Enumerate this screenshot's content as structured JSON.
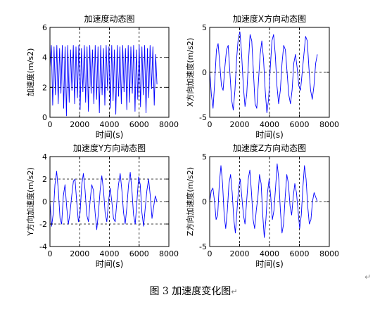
{
  "caption": {
    "text": "图 3  加速度变化图",
    "mark": "↵"
  },
  "return_mark": "↵",
  "colors": {
    "line": "#0000ff",
    "axis": "#000000",
    "grid": "#000000",
    "background": "#ffffff"
  },
  "chart_data": [
    {
      "type": "line",
      "title": "加速度动态图",
      "xlabel": "时间(s)",
      "ylabel": "加速度(m/s2)",
      "xlim": [
        0,
        8000
      ],
      "ylim": [
        0,
        6
      ],
      "xticks": [
        0,
        2000,
        4000,
        6000,
        8000
      ],
      "yticks": [
        0,
        2,
        4,
        6
      ],
      "xtick_labels": [
        "0",
        "2000",
        "4000",
        "6000",
        "8000"
      ],
      "ytick_labels": [
        "0",
        "2",
        "4",
        "6"
      ],
      "grid": true,
      "grid_style": "dashed",
      "x_end": 7200,
      "series": [
        {
          "values": [
            3.3,
            4.8,
            0.8,
            4.7,
            1.5,
            4.8,
            0.9,
            4.6,
            1.6,
            4.8,
            0.6,
            4.7,
            0.1,
            4.8,
            1.0,
            4.5,
            1.8,
            4.8,
            0.9,
            4.7,
            1.3,
            4.8,
            0.5,
            4.6,
            1.7,
            4.8,
            1.0,
            4.7,
            0.4,
            4.8,
            1.6,
            4.5,
            0.9,
            4.8,
            1.2,
            4.7,
            0.3,
            4.8,
            1.5,
            4.6,
            0.8,
            4.8,
            1.8,
            4.7,
            0.6,
            4.8,
            1.1,
            4.5,
            0.2,
            4.8,
            1.4,
            4.7,
            0.9,
            4.8,
            1.7,
            4.6,
            0.5,
            4.8,
            1.0,
            4.7,
            1.6,
            4.8,
            0.4,
            4.5,
            1.2,
            4.8,
            0.7,
            4.7,
            1.5,
            4.8,
            0.3,
            4.6,
            1.3,
            4.8,
            1.9,
            4.7,
            0.8,
            4.2,
            2.2
          ]
        }
      ]
    },
    {
      "type": "line",
      "title": "加速度X方向动态图",
      "xlabel": "时间(s)",
      "ylabel": "X方向加速度(m/s2)",
      "xlim": [
        0,
        8000
      ],
      "ylim": [
        -5,
        5
      ],
      "xticks": [
        0,
        2000,
        4000,
        6000,
        8000
      ],
      "yticks": [
        -5,
        0,
        5
      ],
      "xtick_labels": [
        "0",
        "2000",
        "4000",
        "6000",
        "8000"
      ],
      "ytick_labels": [
        "-5",
        "0",
        "5"
      ],
      "grid": true,
      "grid_style": "dashed",
      "x_end": 7200,
      "series": [
        {
          "values": [
            0.3,
            -2.5,
            -4.0,
            -1.0,
            2.5,
            3.2,
            1.0,
            -1.5,
            -2.0,
            0.5,
            2.5,
            3.0,
            0.0,
            -3.0,
            -4.2,
            -2.0,
            1.5,
            3.8,
            4.5,
            2.0,
            -1.5,
            -3.8,
            -2.5,
            1.0,
            4.2,
            3.5,
            0.0,
            -3.5,
            -4.0,
            -1.0,
            2.0,
            3.5,
            1.5,
            -2.0,
            -4.5,
            -3.0,
            0.5,
            3.5,
            4.2,
            2.0,
            -1.5,
            -3.5,
            -2.0,
            1.0,
            3.0,
            2.5,
            0.0,
            -2.5,
            -3.5,
            -2.0,
            1.0,
            2.0,
            0.5,
            -1.5,
            -2.0,
            0.0,
            2.0,
            4.0,
            3.5,
            0.5,
            -2.0,
            -3.0,
            -1.5,
            1.0,
            2.0
          ]
        }
      ]
    },
    {
      "type": "line",
      "title": "加速度Y方向动态图",
      "xlabel": "时间(s)",
      "ylabel": "Y方向加速度(m/s2)",
      "xlim": [
        0,
        8000
      ],
      "ylim": [
        -4,
        4
      ],
      "xticks": [
        0,
        2000,
        4000,
        6000,
        8000
      ],
      "yticks": [
        -4,
        -2,
        0,
        2,
        4
      ],
      "xtick_labels": [
        "0",
        "2000",
        "4000",
        "6000",
        "8000"
      ],
      "ytick_labels": [
        "-4",
        "-2",
        "0",
        "2",
        "4"
      ],
      "grid": true,
      "grid_style": "dashed",
      "x_end": 7200,
      "series": [
        {
          "values": [
            0.0,
            -2.2,
            -1.0,
            1.5,
            2.7,
            1.0,
            -1.5,
            -2.0,
            0.5,
            1.5,
            -0.5,
            -2.0,
            -1.0,
            0.5,
            1.8,
            2.0,
            0.0,
            -1.8,
            -1.0,
            1.5,
            2.5,
            1.0,
            -1.2,
            -1.8,
            0.0,
            1.5,
            1.0,
            -1.0,
            -2.5,
            -1.0,
            1.0,
            2.3,
            1.0,
            -1.0,
            -1.8,
            0.0,
            1.2,
            0.0,
            -1.5,
            -1.8,
            0.0,
            1.5,
            2.5,
            1.0,
            -1.0,
            -2.0,
            -0.5,
            1.5,
            2.6,
            1.0,
            -1.2,
            -2.0,
            0.0,
            2.2,
            1.5,
            -1.0,
            -2.2,
            -0.5,
            1.0,
            2.0,
            0.5,
            -1.5,
            -0.5,
            0.5,
            0.0
          ]
        }
      ]
    },
    {
      "type": "line",
      "title": "加速度Z方向动态图",
      "xlabel": "时间(s)",
      "ylabel": "Z方向加速度(m/s2)",
      "xlim": [
        0,
        8000
      ],
      "ylim": [
        -5,
        5
      ],
      "xticks": [
        0,
        2000,
        4000,
        6000,
        8000
      ],
      "yticks": [
        -5,
        0,
        5
      ],
      "xtick_labels": [
        "0",
        "2000",
        "4000",
        "6000",
        "8000"
      ],
      "ytick_labels": [
        "-5",
        "0",
        "5"
      ],
      "grid": true,
      "grid_style": "dashed",
      "x_end": 7200,
      "series": [
        {
          "values": [
            0.0,
            1.2,
            1.5,
            0.0,
            -2.0,
            -1.5,
            2.0,
            4.0,
            2.0,
            -1.5,
            -3.0,
            -1.0,
            2.0,
            3.0,
            1.0,
            -2.0,
            -3.5,
            -1.0,
            1.5,
            2.5,
            0.5,
            -1.5,
            -2.5,
            0.0,
            2.5,
            3.5,
            1.0,
            -2.0,
            -3.0,
            -1.0,
            0.5,
            3.0,
            2.0,
            -1.5,
            -4.0,
            -2.0,
            1.0,
            2.5,
            0.5,
            -2.0,
            -1.0,
            1.5,
            4.2,
            2.5,
            -1.0,
            -3.5,
            -2.5,
            0.5,
            3.0,
            2.0,
            -0.5,
            -1.5,
            0.5,
            2.0,
            1.0,
            -1.0,
            -3.0,
            -1.5,
            1.5,
            4.0,
            2.5,
            -0.5,
            -2.5,
            -2.0,
            0.0,
            1.0,
            0.5,
            0.0
          ]
        }
      ]
    }
  ]
}
